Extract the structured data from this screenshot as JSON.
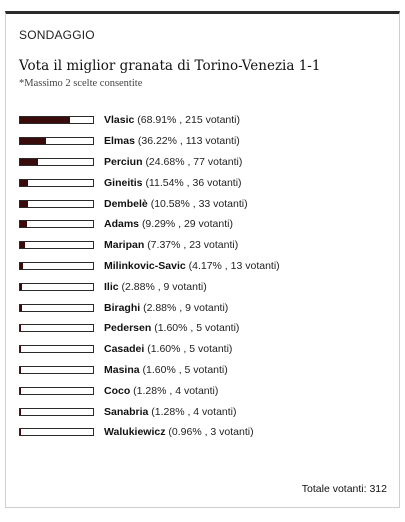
{
  "poll": {
    "section_label": "SONDAGGIO",
    "question": "Vota il miglior granata di Torino-Venezia 1-1",
    "note": "*Massimo 2 scelte consentite",
    "total_label": "Totale votanti: 312",
    "colors": {
      "bar_fill": "#3a0b0b",
      "bar_border": "#2a2a2a",
      "top_rule": "#2a2a2a"
    },
    "options": [
      {
        "name": "Vlasic",
        "stats": "(68.91% , 215 votanti)",
        "percent": 68.91
      },
      {
        "name": "Elmas",
        "stats": "(36.22% , 113 votanti)",
        "percent": 36.22
      },
      {
        "name": "Perciun",
        "stats": "(24.68% , 77 votanti)",
        "percent": 24.68
      },
      {
        "name": "Gineitis",
        "stats": "(11.54% , 36 votanti)",
        "percent": 11.54
      },
      {
        "name": "Dembelè",
        "stats": "(10.58% , 33 votanti)",
        "percent": 10.58
      },
      {
        "name": "Adams",
        "stats": "(9.29% , 29 votanti)",
        "percent": 9.29
      },
      {
        "name": "Maripan",
        "stats": "(7.37% , 23 votanti)",
        "percent": 7.37
      },
      {
        "name": "Milinkovic-Savic",
        "stats": "(4.17% , 13 votanti)",
        "percent": 4.17
      },
      {
        "name": "Ilic",
        "stats": "(2.88% , 9 votanti)",
        "percent": 2.88
      },
      {
        "name": "Biraghi",
        "stats": "(2.88% , 9 votanti)",
        "percent": 2.88
      },
      {
        "name": "Pedersen",
        "stats": "(1.60% , 5 votanti)",
        "percent": 1.6
      },
      {
        "name": "Casadei",
        "stats": "(1.60% , 5 votanti)",
        "percent": 1.6
      },
      {
        "name": "Masina",
        "stats": "(1.60% , 5 votanti)",
        "percent": 1.6
      },
      {
        "name": "Coco",
        "stats": "(1.28% , 4 votanti)",
        "percent": 1.28
      },
      {
        "name": "Sanabria",
        "stats": "(1.28% , 4 votanti)",
        "percent": 1.28
      },
      {
        "name": "Walukiewicz",
        "stats": "(0.96% , 3 votanti)",
        "percent": 0.96
      }
    ]
  }
}
